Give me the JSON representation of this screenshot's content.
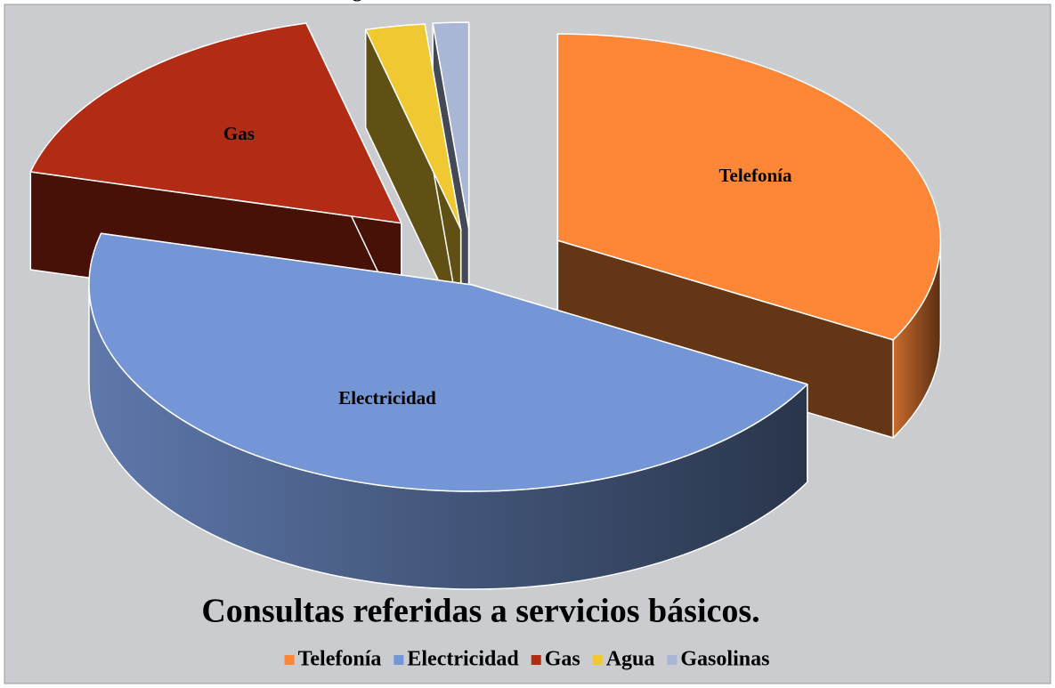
{
  "chart_data": {
    "type": "pie",
    "title": "Consultas referidas a servicios básicos.",
    "categories": [
      "Telefonía",
      "Electricidad",
      "Gas",
      "Agua",
      "Gasolinas"
    ],
    "values": [
      33,
      46,
      17,
      2.5,
      1.5
    ],
    "colors": [
      "#fd8637",
      "#7596d6",
      "#b22b15",
      "#f0c832",
      "#a9b6d6"
    ],
    "legend": "bottom"
  }
}
